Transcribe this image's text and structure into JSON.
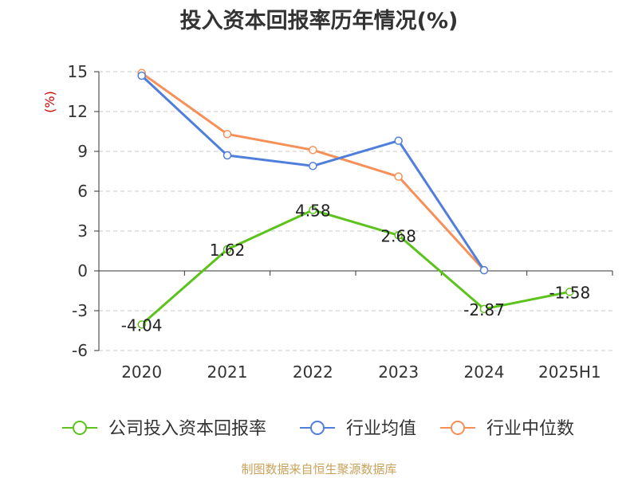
{
  "chart_data": {
    "type": "line",
    "title": "投入资本回报率历年情况(%)",
    "ylabel": "(%)",
    "xlabel": "",
    "categories": [
      "2020",
      "2021",
      "2022",
      "2023",
      "2024",
      "2025H1"
    ],
    "ylim": [
      -6,
      15
    ],
    "yticks": [
      -6,
      -3,
      0,
      3,
      6,
      9,
      12,
      15
    ],
    "grid": true,
    "legend_position": "bottom",
    "series": [
      {
        "name": "公司投入资本回报率",
        "color": "#5cc31c",
        "values": [
          -4.04,
          1.62,
          4.58,
          2.68,
          -2.87,
          -1.58
        ],
        "labels": [
          "-4.04",
          "1.62",
          "4.58",
          "2.68",
          "-2.87",
          "-1.58"
        ]
      },
      {
        "name": "行业均值",
        "color": "#4f7fdb",
        "values": [
          14.7,
          8.7,
          7.9,
          9.8,
          0.05,
          null
        ]
      },
      {
        "name": "行业中位数",
        "color": "#f79058",
        "values": [
          14.9,
          10.3,
          9.1,
          7.1,
          0.05,
          null
        ]
      }
    ]
  },
  "footer": {
    "source": "制图数据来自恒生聚源数据库"
  }
}
